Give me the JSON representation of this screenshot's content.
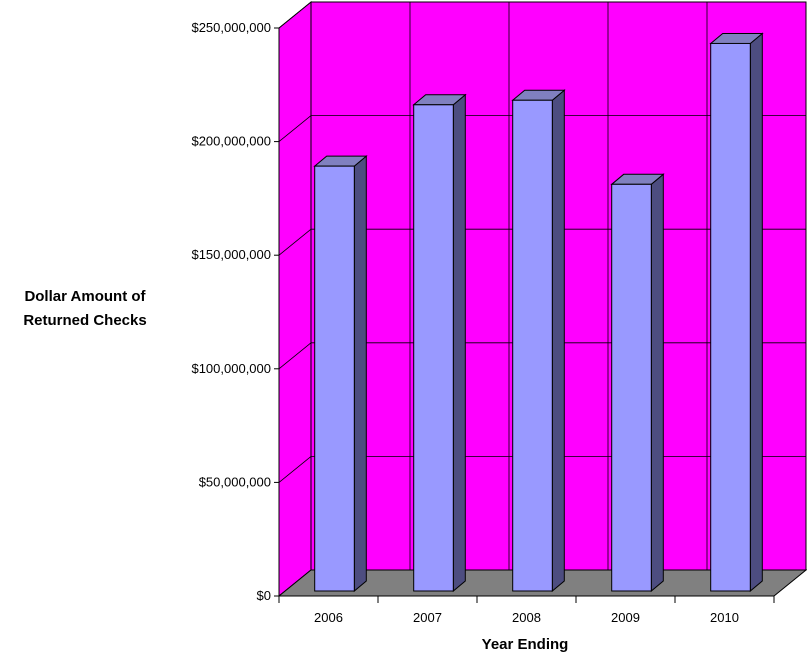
{
  "chart_data": {
    "type": "bar",
    "title": "",
    "xlabel": "Year Ending",
    "ylabel_lines": [
      "Dollar Amount of",
      "Returned Checks"
    ],
    "categories": [
      "2006",
      "2007",
      "2008",
      "2009",
      "2010"
    ],
    "values": [
      187000000,
      214000000,
      216000000,
      179000000,
      241000000
    ],
    "ylim": [
      0,
      250000000
    ],
    "yticks": [
      0,
      50000000,
      100000000,
      150000000,
      200000000,
      250000000
    ],
    "ytick_labels": [
      "$0",
      "$50,000,000",
      "$100,000,000",
      "$150,000,000",
      "$200,000,000",
      "$250,000,000"
    ],
    "grid": true,
    "legend": "none",
    "colors": {
      "wall": "#ff00ff",
      "floor": "#808080",
      "bar_front": "#9999ff",
      "bar_side": "#4d4d80",
      "bar_top": "#8080c0"
    }
  }
}
